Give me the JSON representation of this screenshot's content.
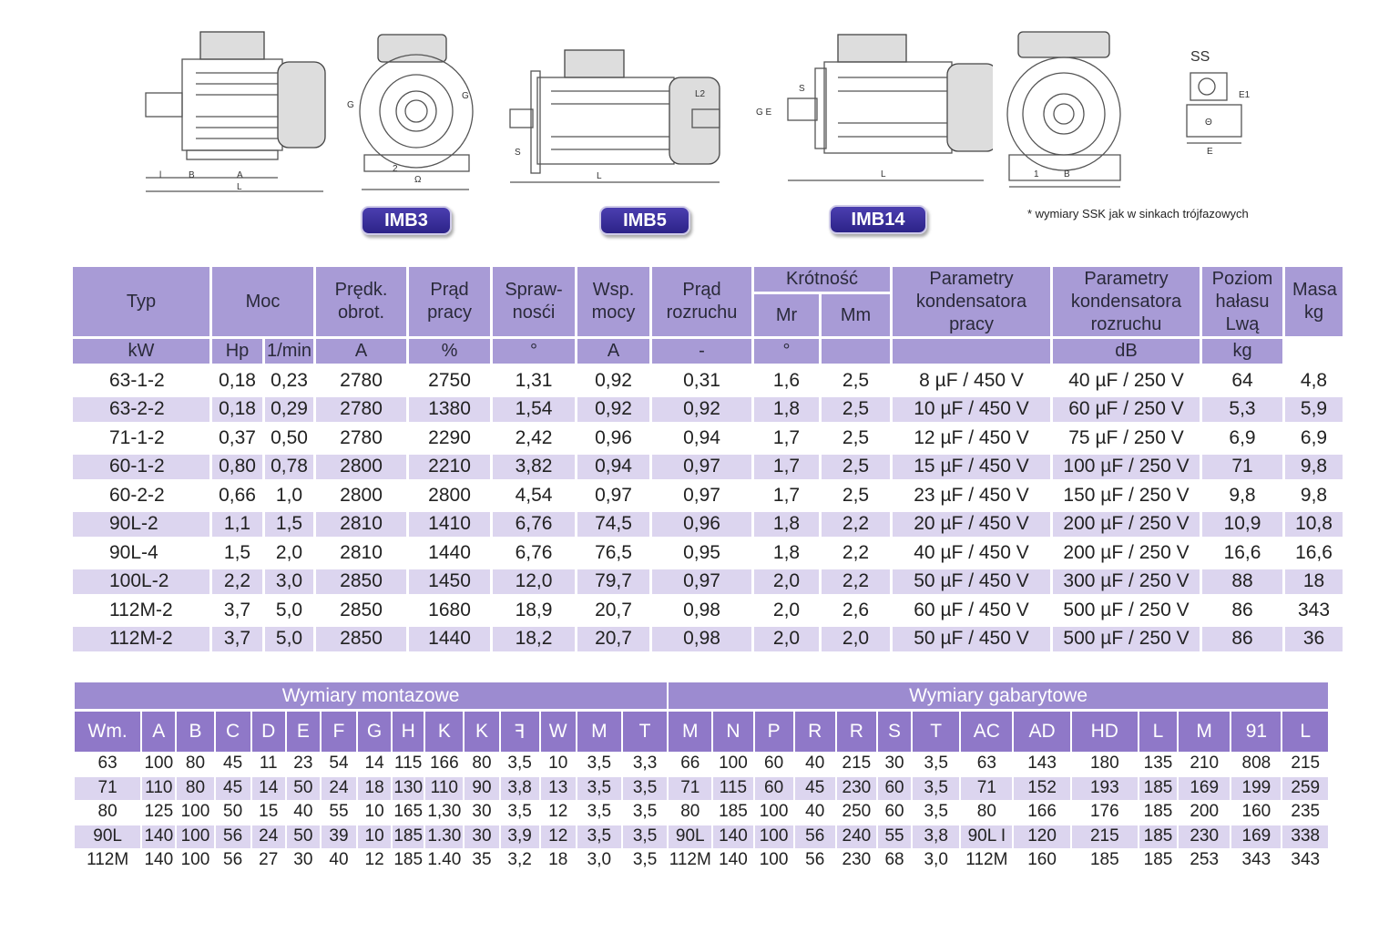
{
  "badges": [
    "IMB3",
    "IMB5",
    "IMB14"
  ],
  "note": "* wymiary SSK jak w sinkach trójfazowych",
  "colors": {
    "header": "#a89bd6",
    "stripe": "#dcd5ef",
    "badge": "#3b2f9a",
    "header2": "#8f78c8"
  },
  "table1": {
    "headers": {
      "typ": "Typ",
      "moc": "Moc",
      "predk": "Prędk. obrot.",
      "prad_pracy": "Prąd pracy",
      "sprawnosc": "Spraw- nosći",
      "wsp": "Wsp. mocy",
      "prad_rozruchu": "Prąd rozruchu",
      "krotnosc": "Krótność",
      "mr": "Mr",
      "mm": "Mm",
      "kond_pracy": "Parametry kondensatora pracy",
      "kond_rozruchu": "Parametry kondensatora rozruchu",
      "poziom": "Poziom hałasu Lwą",
      "masa": "Masa kg"
    },
    "units": [
      "kW",
      "Hp",
      "1/min",
      "A",
      "%",
      "°",
      "A",
      "-",
      "°",
      "",
      "",
      "dB",
      "kg"
    ],
    "rows": [
      [
        "63-1-2",
        "0,18",
        "0,23",
        "2780",
        "2750",
        "1,31",
        "0,92",
        "0,31",
        "1,6",
        "2,5",
        "8 µF / 450 V",
        "40 µF / 250 V",
        "64",
        "4,8"
      ],
      [
        "63-2-2",
        "0,18",
        "0,29",
        "2780",
        "1380",
        "1,54",
        "0,92",
        "0,92",
        "1,8",
        "2,5",
        "10 µF / 450 V",
        "60 µF / 250 V",
        "5,3",
        "5,9"
      ],
      [
        "71-1-2",
        "0,37",
        "0,50",
        "2780",
        "2290",
        "2,42",
        "0,96",
        "0,94",
        "1,7",
        "2,5",
        "12 µF / 450 V",
        "75 µF / 250 V",
        "6,9",
        "6,9"
      ],
      [
        "60-1-2",
        "0,80",
        "0,78",
        "2800",
        "2210",
        "3,82",
        "0,94",
        "0,97",
        "1,7",
        "2,5",
        "15 µF / 450 V",
        "100 µF / 250 V",
        "71",
        "9,8"
      ],
      [
        "60-2-2",
        "0,66",
        "1,0",
        "2800",
        "2800",
        "4,54",
        "0,97",
        "0,97",
        "1,7",
        "2,5",
        "23 µF / 450 V",
        "150 µF / 250 V",
        "9,8",
        "9,8"
      ],
      [
        "90L-2",
        "1,1",
        "1,5",
        "2810",
        "1410",
        "6,76",
        "74,5",
        "0,96",
        "1,8",
        "2,2",
        "20 µF / 450 V",
        "200 µF / 250 V",
        "10,9",
        "10,8"
      ],
      [
        "90L-4",
        "1,5",
        "2,0",
        "2810",
        "1440",
        "6,76",
        "76,5",
        "0,95",
        "1,8",
        "2,2",
        "40 µF / 450 V",
        "200 µF / 250 V",
        "16,6",
        "16,6"
      ],
      [
        "100L-2",
        "2,2",
        "3,0",
        "2850",
        "1450",
        "12,0",
        "79,7",
        "0,97",
        "2,0",
        "2,2",
        "50 µF / 450 V",
        "300 µF / 250 V",
        "88",
        "18"
      ],
      [
        "112M-2",
        "3,7",
        "5,0",
        "2850",
        "1680",
        "18,9",
        "20,7",
        "0,98",
        "2,0",
        "2,6",
        "60 µF / 450 V",
        "500 µF / 250 V",
        "86",
        "343"
      ],
      [
        "112M-2",
        "3,7",
        "5,0",
        "2850",
        "1440",
        "18,2",
        "20,7",
        "0,98",
        "2,0",
        "2,0",
        "50 µF / 450 V",
        "500 µF / 250 V",
        "86",
        "36"
      ]
    ]
  },
  "table2": {
    "title_left": "Wymiary montazowe",
    "title_right": "Wymiary gabarytowe",
    "columns": [
      "Wm.",
      "A",
      "B",
      "C",
      "D",
      "E",
      "F",
      "G",
      "H",
      "K",
      "K",
      "ꟻ",
      "W",
      "M",
      "T",
      "M",
      "N",
      "P",
      "R",
      "R",
      "S",
      "T",
      "AC",
      "AD",
      "HD",
      "L",
      "M",
      "91",
      "L"
    ],
    "rows": [
      [
        "63",
        "100",
        "80",
        "45",
        "11",
        "23",
        "54",
        "14",
        "115",
        "166",
        "80",
        "3,5",
        "10",
        "3,5",
        "3,3",
        "66",
        "100",
        "60",
        "40",
        "215",
        "30",
        "3,5",
        "63",
        "143",
        "180",
        "135",
        "210",
        "808",
        "215"
      ],
      [
        "71",
        "110",
        "80",
        "45",
        "14",
        "50",
        "24",
        "18",
        "130",
        "110",
        "90",
        "3,8",
        "13",
        "3,5",
        "3,5",
        "71",
        "115",
        "60",
        "45",
        "230",
        "60",
        "3,5",
        "71",
        "152",
        "193",
        "185",
        "169",
        "199",
        "259"
      ],
      [
        "80",
        "125",
        "100",
        "50",
        "15",
        "40",
        "55",
        "10",
        "165",
        "1,30",
        "30",
        "3,5",
        "12",
        "3,5",
        "3,5",
        "80",
        "185",
        "100",
        "40",
        "250",
        "60",
        "3,5",
        "80",
        "166",
        "176",
        "185",
        "200",
        "160",
        "235"
      ],
      [
        "90L",
        "140",
        "100",
        "56",
        "24",
        "50",
        "39",
        "10",
        "185",
        "1.30",
        "30",
        "3,9",
        "12",
        "3,5",
        "3,5",
        "90L",
        "140",
        "100",
        "56",
        "240",
        "55",
        "3,8",
        "90L I",
        "120",
        "215",
        "185",
        "230",
        "169",
        "338"
      ],
      [
        "112M",
        "140",
        "100",
        "56",
        "27",
        "30",
        "40",
        "12",
        "185",
        "1.40",
        "35",
        "3,2",
        "18",
        "3,0",
        "3,5",
        "112M",
        "140",
        "100",
        "56",
        "230",
        "68",
        "3,0",
        "112M",
        "160",
        "185",
        "185",
        "253",
        "343",
        "343"
      ]
    ]
  }
}
